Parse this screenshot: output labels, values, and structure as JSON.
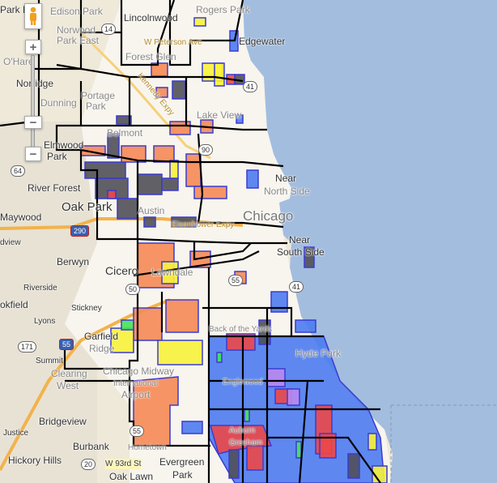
{
  "map": {
    "colors": {
      "water": "#a3bddf",
      "land": "#f4f0e6",
      "orange": "#f58a55",
      "blue": "#4d7cf0",
      "gray": "#505058",
      "yellow": "#f7f23a",
      "red": "#ec4848",
      "purple": "#b98af0",
      "green": "#45e25a",
      "boundary": "#000000"
    },
    "labels": [
      "Park Ri",
      "Edison Park",
      "Lincolnwood",
      "Rogers Park",
      "Norwood",
      "Park East",
      "W Peterson Ave",
      "Edgewater",
      "O'Hare",
      "Forest Glen",
      "Norridge",
      "Dunning",
      "Portage",
      "Park",
      "Kennedy Expy",
      "Lake View",
      "Belmont",
      "Elmwood",
      "Park",
      "River Forest",
      "Near",
      "North Side",
      "Oak Park",
      "Chicago",
      "Maywood",
      "Eisenhower Expy",
      "Austin",
      "dview",
      "Berwyn",
      "Lawndale",
      "Near",
      "South Side",
      "Cicero",
      "Riverside",
      "okfield",
      "Stickney",
      "Lyons",
      "Garfield",
      "Ridge",
      "Back of the Yards",
      "Hyde Park",
      "Summit",
      "Clearing",
      "West",
      "Chicago Midway",
      "International",
      "Airport",
      "Englewood",
      "Bridgeview",
      "Justice",
      "Auburn",
      "Gresham",
      "Burbank",
      "Hometown",
      "Hickory Hills",
      "W 93rd St",
      "Evergreen",
      "Park",
      "Oak Lawn"
    ],
    "shields": [
      "14",
      "64",
      "290",
      "50",
      "55",
      "171",
      "55",
      "20",
      "41",
      "41",
      "90",
      "55"
    ]
  },
  "controls": {
    "pegman": "pegman-icon",
    "zoom_in": "+",
    "zoom_handle": "−",
    "zoom_out": "−"
  }
}
